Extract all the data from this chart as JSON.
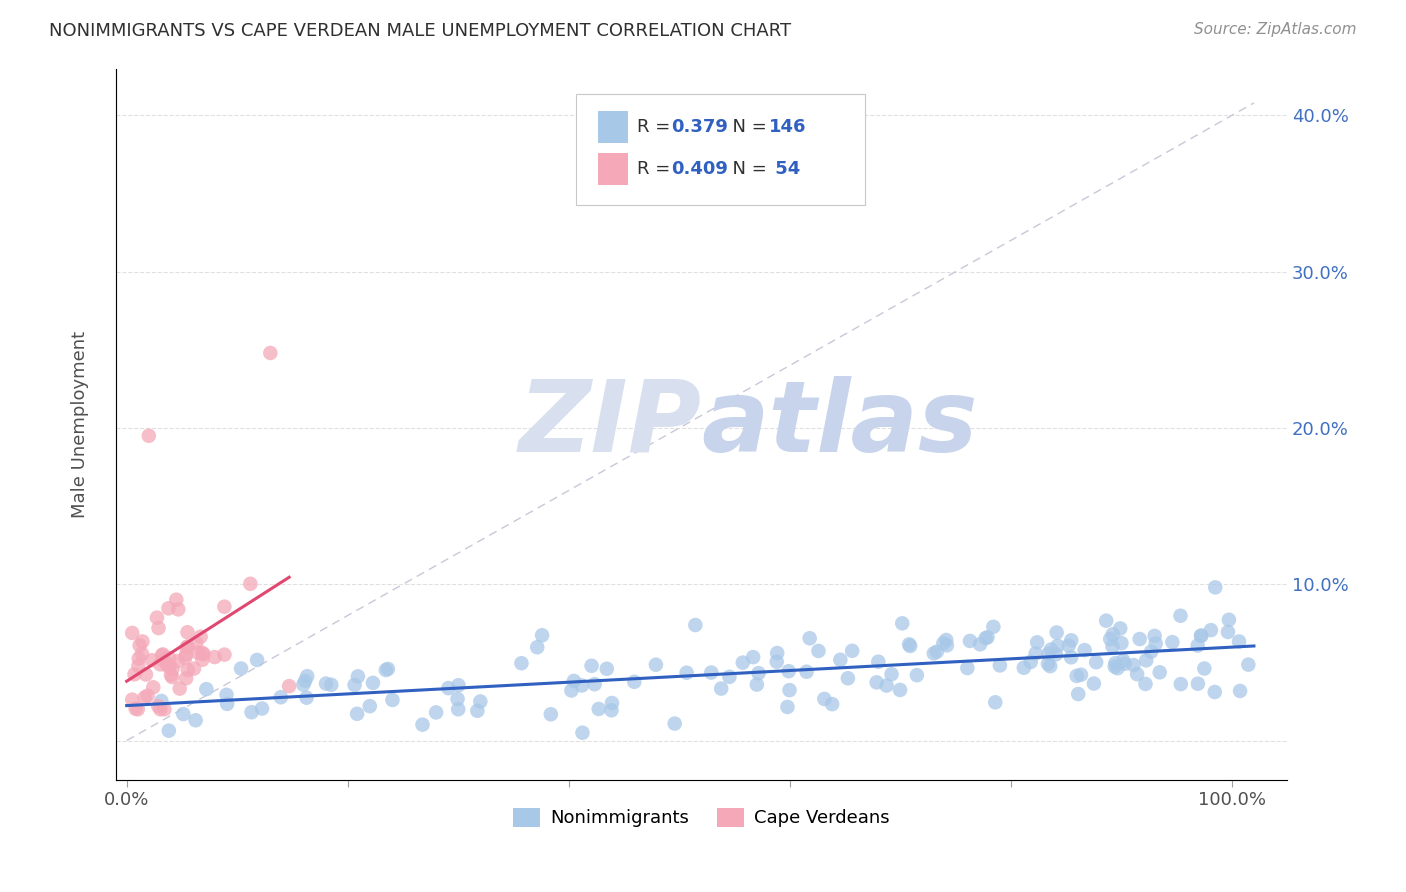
{
  "title": "NONIMMIGRANTS VS CAPE VERDEAN MALE UNEMPLOYMENT CORRELATION CHART",
  "source": "Source: ZipAtlas.com",
  "ylabel": "Male Unemployment",
  "nonimm_R": 0.379,
  "nonimm_N": 146,
  "cape_R": 0.409,
  "cape_N": 54,
  "nonimm_color": "#a8c8e8",
  "cape_color": "#f4a8b8",
  "nonimm_line_color": "#3060c0",
  "cape_line_color": "#e04870",
  "diagonal_color": "#c8c8d8",
  "watermark_zip_color": "#d0d8ee",
  "watermark_atlas_color": "#c8d4ec",
  "background_color": "#ffffff",
  "grid_color": "#e0e0e0",
  "title_color": "#303030",
  "right_tick_color": "#4070c0",
  "legend_text_color": "#3060c0",
  "xlim": [
    -0.01,
    1.05
  ],
  "ylim": [
    -0.025,
    0.43
  ]
}
